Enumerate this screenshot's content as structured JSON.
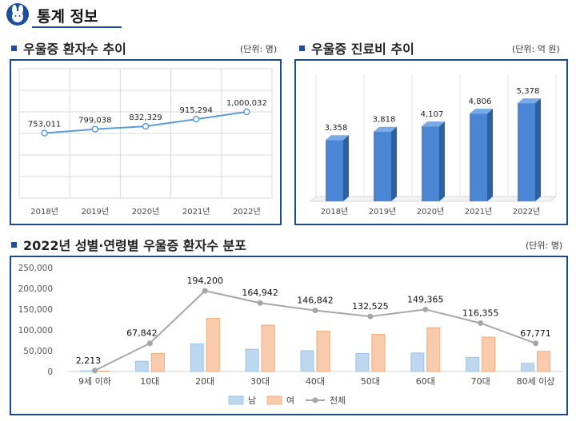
{
  "header": {
    "title": "통계 정보"
  },
  "colors": {
    "accent": "#1a4f9c",
    "line_chart": "#5b9bd5",
    "bar_3d": "#4a86d4",
    "male": "#bdd7ee",
    "female": "#f8cbad",
    "total": "#a6a6a6"
  },
  "sections": {
    "patients": {
      "title": "우울증 환자수 추이",
      "unit": "(단위: 명)"
    },
    "cost": {
      "title": "우울증 진료비 추이",
      "unit": "(단위: 억 원)"
    },
    "distribution": {
      "title": "2022년 성별·연령별 우울증 환자수 분포",
      "unit": "(단위: 명)"
    }
  },
  "chart_data": [
    {
      "type": "line",
      "categories": [
        "2018년",
        "2019년",
        "2020년",
        "2021년",
        "2022년"
      ],
      "values": [
        753011,
        799038,
        832329,
        915294,
        1000032
      ],
      "labels": [
        "753,011",
        "799,038",
        "832,329",
        "915,294",
        "1,000,032"
      ],
      "ylim": [
        0,
        1500000
      ],
      "grid": true
    },
    {
      "type": "bar",
      "categories": [
        "2018년",
        "2019년",
        "2020년",
        "2021년",
        "2022년"
      ],
      "values": [
        3358,
        3818,
        4107,
        4806,
        5378
      ],
      "labels": [
        "3,358",
        "3,818",
        "4,107",
        "4,806",
        "5,378"
      ],
      "ylim": [
        0,
        7000
      ],
      "style": "3d"
    },
    {
      "type": "bar",
      "categories": [
        "9세 이하",
        "10대",
        "20대",
        "30대",
        "40대",
        "50대",
        "60대",
        "70대",
        "80세 이상"
      ],
      "series": [
        {
          "name": "남",
          "values": [
            1400,
            24500,
            66500,
            53500,
            50000,
            43500,
            44500,
            34000,
            19500
          ]
        },
        {
          "name": "여",
          "values": [
            813,
            43342,
            127700,
            111442,
            96842,
            89025,
            104865,
            82355,
            48271
          ]
        },
        {
          "name": "전체",
          "type": "line",
          "values": [
            2213,
            67842,
            194200,
            164942,
            146842,
            132525,
            149365,
            116355,
            67771
          ]
        }
      ],
      "total_labels": [
        "2,213",
        "67,842",
        "194,200",
        "164,942",
        "146,842",
        "132,525",
        "149,365",
        "116,355",
        "67,771"
      ],
      "yticks": [
        "0",
        "50,000",
        "100,000",
        "150,000",
        "200,000",
        "250,000"
      ],
      "ylim": [
        0,
        250000
      ],
      "legend": "bottom"
    }
  ]
}
